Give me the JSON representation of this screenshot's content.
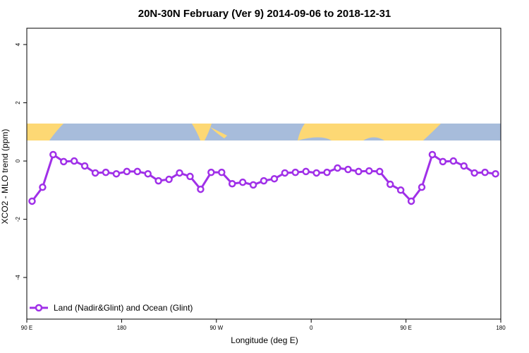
{
  "chart_data": {
    "type": "line",
    "title": "20N-30N February (Ver 9)   2014-09-06 to 2018-12-31",
    "x_label": "Longitude (deg E)",
    "y_label": "XCO2 - MLO trend (ppm)",
    "xlim": [
      90,
      540
    ],
    "ylim": [
      -5.43,
      4.56
    ],
    "xticks": [
      {
        "value": 90,
        "label": "90 E"
      },
      180,
      {
        "value": 270,
        "label": "90 W"
      },
      {
        "value": 360,
        "label": "0"
      },
      {
        "value": 450,
        "label": "90 E"
      },
      {
        "value": 540,
        "label": "180"
      }
    ],
    "yticks": [
      -4,
      -2,
      0,
      2,
      4
    ],
    "legend": "bottom-left",
    "x": [
      95,
      105,
      115,
      125,
      135,
      145,
      155,
      165,
      175,
      185,
      195,
      205,
      215,
      225,
      235,
      245,
      255,
      265,
      275,
      285,
      295,
      305,
      315,
      325,
      335,
      345,
      355,
      365,
      375,
      385,
      395,
      405,
      415,
      425,
      435,
      445,
      455,
      465,
      475,
      485,
      495,
      505,
      515,
      525,
      535
    ],
    "series": [
      {
        "name": "Land (Nadir&Glint) and Ocean (Glint)",
        "color": "#a030e8",
        "values": [
          -1.38,
          -0.9,
          0.22,
          -0.02,
          0.0,
          -0.17,
          -0.41,
          -0.39,
          -0.44,
          -0.36,
          -0.36,
          -0.44,
          -0.68,
          -0.63,
          -0.41,
          -0.53,
          -0.97,
          -0.39,
          -0.39,
          -0.78,
          -0.73,
          -0.82,
          -0.68,
          -0.61,
          -0.41,
          -0.39,
          -0.36,
          -0.41,
          -0.39,
          -0.24,
          -0.29,
          -0.36,
          -0.34,
          -0.36,
          -0.8,
          -1.0,
          -1.38,
          -0.9,
          0.22,
          -0.02,
          0.0,
          -0.17,
          -0.41,
          -0.39,
          -0.44
        ]
      }
    ]
  }
}
